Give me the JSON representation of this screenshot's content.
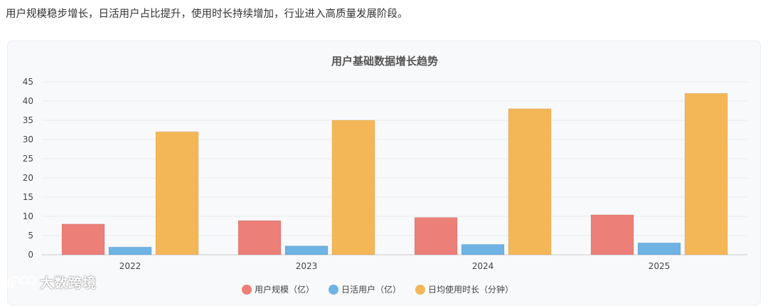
{
  "intro_text": "用户规模稳步增长，日活用户占比提升，使用时长持续增加，行业进入高质量发展阶段。",
  "watermark": {
    "text": "大数跨境",
    "icon": "brand-logo-icon"
  },
  "chart_data": {
    "type": "bar",
    "title": "用户基础数据增长趋势",
    "categories": [
      "2022",
      "2023",
      "2024",
      "2025"
    ],
    "series": [
      {
        "name": "用户规模（亿）",
        "values": [
          8.0,
          8.9,
          9.7,
          10.4
        ],
        "color": "#ec7f78"
      },
      {
        "name": "日活用户（亿）",
        "values": [
          2.0,
          2.3,
          2.7,
          3.1
        ],
        "color": "#6fb2e4"
      },
      {
        "name": "日均使用时长（分钟）",
        "values": [
          32,
          35,
          38,
          42
        ],
        "color": "#f4b758"
      }
    ],
    "ylim": [
      0,
      45
    ],
    "yticks": [
      0,
      5,
      10,
      15,
      20,
      25,
      30,
      35,
      40,
      45
    ],
    "grid": true,
    "legend_position": "bottom"
  }
}
